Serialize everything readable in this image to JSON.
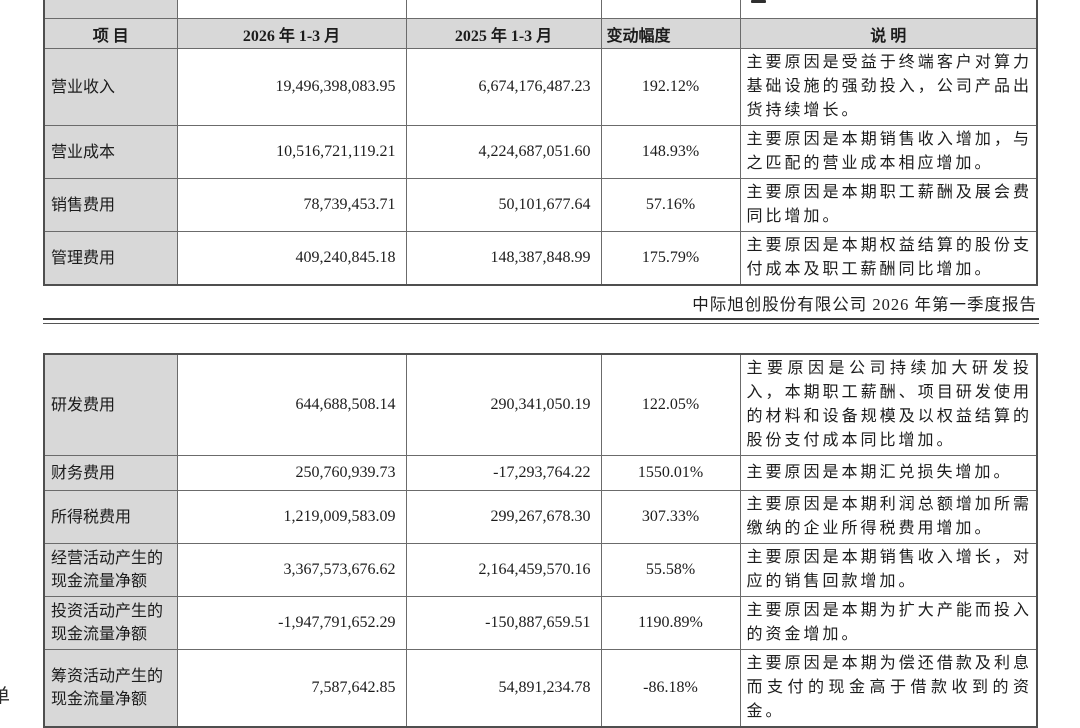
{
  "page_header": {
    "title": "中际旭创股份有限公司 2026 年第一季度报告",
    "clipped_left_char": "单"
  },
  "columns": {
    "item": "项 目",
    "y2026": "2026 年 1-3 月",
    "y2025": "2025 年 1-3 月",
    "change": "变动幅度",
    "note": "说 明"
  },
  "table1": {
    "rows": [
      {
        "item": "营业收入",
        "y2026": "19,496,398,083.95",
        "y2025": "6,674,176,487.23",
        "change": "192.12%",
        "note": "主要原因是受益于终端客户对算力基础设施的强劲投入，公司产品出货持续增长。"
      },
      {
        "item": "营业成本",
        "y2026": "10,516,721,119.21",
        "y2025": "4,224,687,051.60",
        "change": "148.93%",
        "note": "主要原因是本期销售收入增加，与之匹配的营业成本相应增加。"
      },
      {
        "item": "销售费用",
        "y2026": "78,739,453.71",
        "y2025": "50,101,677.64",
        "change": "57.16%",
        "note": "主要原因是本期职工薪酬及展会费同比增加。"
      },
      {
        "item": "管理费用",
        "y2026": "409,240,845.18",
        "y2025": "148,387,848.99",
        "change": "175.79%",
        "note": "主要原因是本期权益结算的股份支付成本及职工薪酬同比增加。"
      }
    ]
  },
  "table2": {
    "rows": [
      {
        "item": "研发费用",
        "y2026": "644,688,508.14",
        "y2025": "290,341,050.19",
        "change": "122.05%",
        "note": "主要原因是公司持续加大研发投入，本期职工薪酬、项目研发使用的材料和设备规模及以权益结算的股份支付成本同比增加。"
      },
      {
        "item": "财务费用",
        "y2026": "250,760,939.73",
        "y2025": "-17,293,764.22",
        "change": "1550.01%",
        "note": "主要原因是本期汇兑损失增加。"
      },
      {
        "item": "所得税费用",
        "y2026": "1,219,009,583.09",
        "y2025": "299,267,678.30",
        "change": "307.33%",
        "note": "主要原因是本期利润总额增加所需缴纳的企业所得税费用增加。"
      },
      {
        "item": "经营活动产生的现金流量净额",
        "y2026": "3,367,573,676.62",
        "y2025": "2,164,459,570.16",
        "change": "55.58%",
        "note": "主要原因是本期销售收入增长，对应的销售回款增加。"
      },
      {
        "item": "投资活动产生的现金流量净额",
        "y2026": "-1,947,791,652.29",
        "y2025": "-150,887,659.51",
        "change": "1190.89%",
        "note": "主要原因是本期为扩大产能而投入的资金增加。"
      },
      {
        "item": "筹资活动产生的现金流量净额",
        "y2026": "7,587,642.85",
        "y2025": "54,891,234.78",
        "change": "-86.18%",
        "note": "主要原因是本期为偿还借款及利息而支付的现金高于借款收到的资金。"
      }
    ]
  }
}
